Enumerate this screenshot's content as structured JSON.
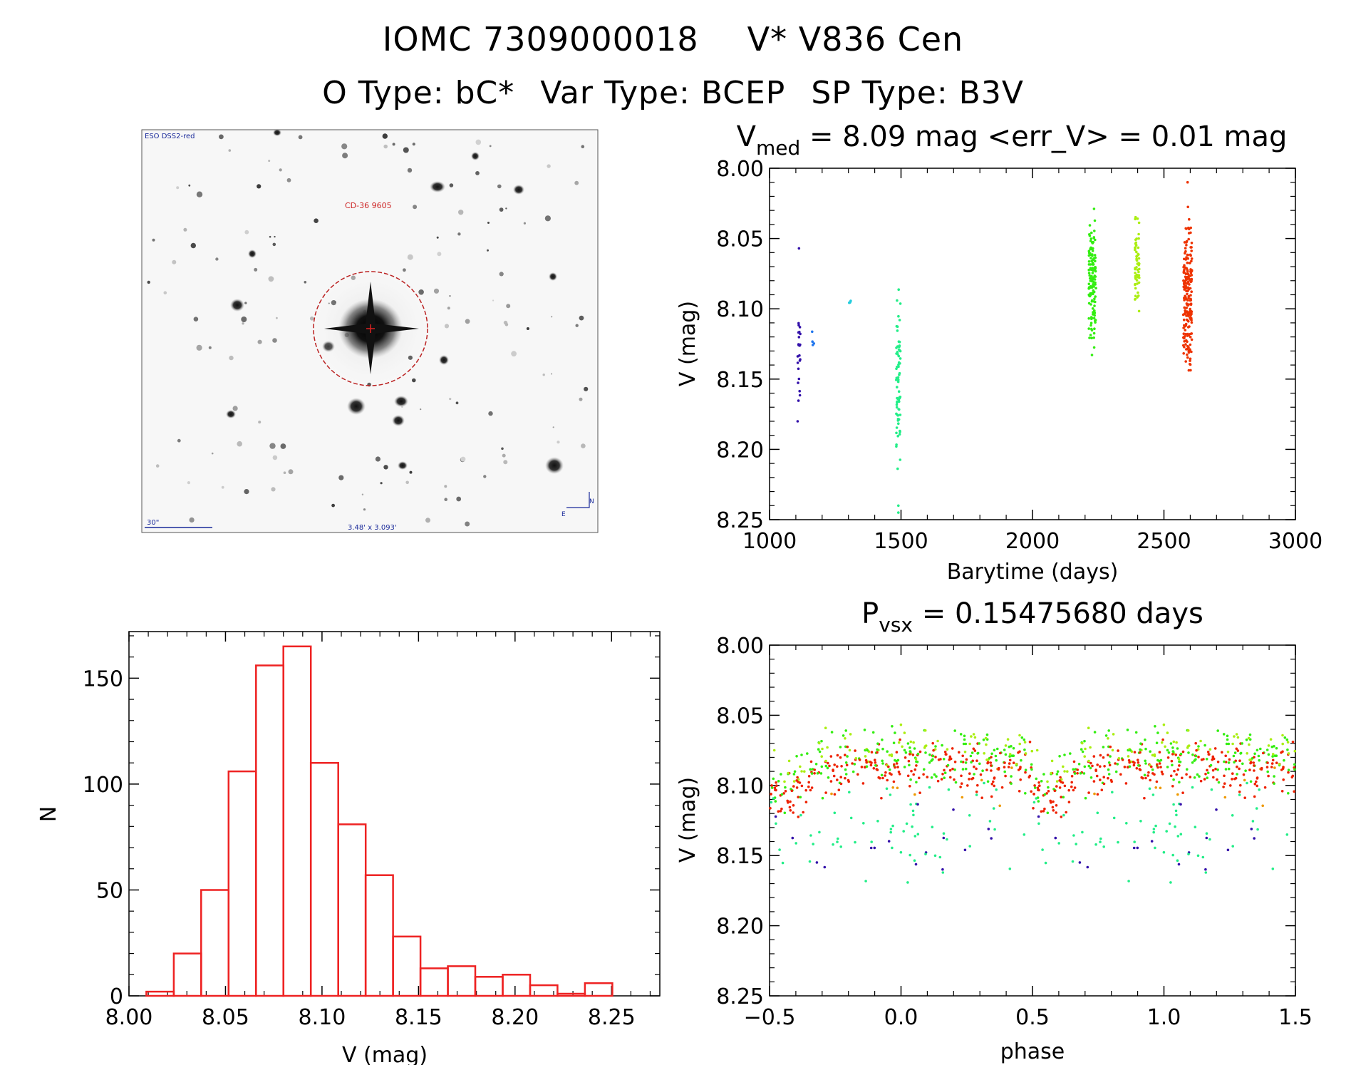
{
  "header": {
    "object_id": "IOMC 7309000018",
    "star_name": "V* V836 Cen",
    "o_type": "O Type: bC*",
    "var_type": "Var Type: BCEP",
    "sp_type": "SP Type: B3V"
  },
  "finder_chart": {
    "survey_label": "ESO DSS2-red",
    "target_label": "CD-36 9605",
    "scale_label": "30\"",
    "fov_label": "3.48' x 3.093'",
    "north_label": "N",
    "east_label": "E"
  },
  "colors": {
    "histogram": "#ee2222",
    "axis": "#000000"
  },
  "chart_data": [
    {
      "id": "lightcurve",
      "type": "scatter",
      "title": "V_med = 8.09 mag <err_V> = 0.01 mag",
      "title_parts": [
        "V",
        "med",
        "= 8.09 mag <err_V> = 0.01 mag"
      ],
      "xlabel": "Barytime (days)",
      "ylabel": "V (mag)",
      "xlim": [
        1000,
        3000
      ],
      "ylim": [
        8.0,
        8.25
      ],
      "y_inverted": true,
      "x_ticks": [
        "1000",
        "1500",
        "2000",
        "2500",
        "3000"
      ],
      "y_ticks": [
        "8.00",
        "8.05",
        "8.10",
        "8.15",
        "8.20",
        "8.25"
      ],
      "groups": [
        {
          "x": 1112,
          "ymin": 8.075,
          "ymax": 8.18,
          "n": 24,
          "color": "#3311aa",
          "spread": 2,
          "extra": [
            8.057
          ]
        },
        {
          "x": 1166,
          "ymin": 8.115,
          "ymax": 8.128,
          "n": 4,
          "color": "#2277ee",
          "spread": 2,
          "extra": []
        },
        {
          "x": 1305,
          "ymin": 8.092,
          "ymax": 8.098,
          "n": 4,
          "color": "#22ccdd",
          "spread": 3,
          "extra": []
        },
        {
          "x": 1490,
          "ymin": 8.085,
          "ymax": 8.225,
          "n": 70,
          "color": "#22ee88",
          "spread": 3,
          "extra": [
            8.24,
            8.245
          ]
        },
        {
          "x": 2228,
          "ymin": 8.025,
          "ymax": 8.135,
          "n": 140,
          "color": "#33ee11",
          "spread": 5,
          "extra": []
        },
        {
          "x": 2398,
          "ymin": 8.025,
          "ymax": 8.112,
          "n": 60,
          "color": "#aaee11",
          "spread": 3,
          "extra": []
        },
        {
          "x": 2590,
          "ymin": 8.02,
          "ymax": 8.158,
          "n": 200,
          "color": "#ee3300",
          "spread": 6,
          "extra": [
            8.01
          ]
        }
      ]
    },
    {
      "id": "histogram",
      "type": "bar",
      "xlabel": "V (mag)",
      "ylabel": "N",
      "xlim": [
        8.0,
        8.275
      ],
      "ylim": [
        0,
        172
      ],
      "x_ticks": [
        "8.00",
        "8.05",
        "8.10",
        "8.15",
        "8.20",
        "8.25"
      ],
      "y_ticks": [
        "0",
        "50",
        "100",
        "150"
      ],
      "bin_width": 0.0142,
      "bin_start": 8.009,
      "values": [
        2,
        20,
        50,
        106,
        156,
        165,
        110,
        81,
        57,
        28,
        13,
        14,
        9,
        10,
        5,
        1,
        6
      ]
    },
    {
      "id": "phased",
      "type": "scatter",
      "title": "P_vsx = 0.15475680 days",
      "title_parts": [
        "P",
        "vsx",
        "= 0.15475680 days"
      ],
      "xlabel": "phase",
      "ylabel": "V (mag)",
      "xlim": [
        -0.5,
        1.5
      ],
      "ylim": [
        8.0,
        8.25
      ],
      "y_inverted": true,
      "period_days": 0.1547568,
      "x_ticks": [
        "−0.5",
        "0.0",
        "0.5",
        "1.0",
        "1.5"
      ],
      "y_ticks": [
        "8.00",
        "8.05",
        "8.10",
        "8.15",
        "8.20",
        "8.25"
      ]
    }
  ]
}
